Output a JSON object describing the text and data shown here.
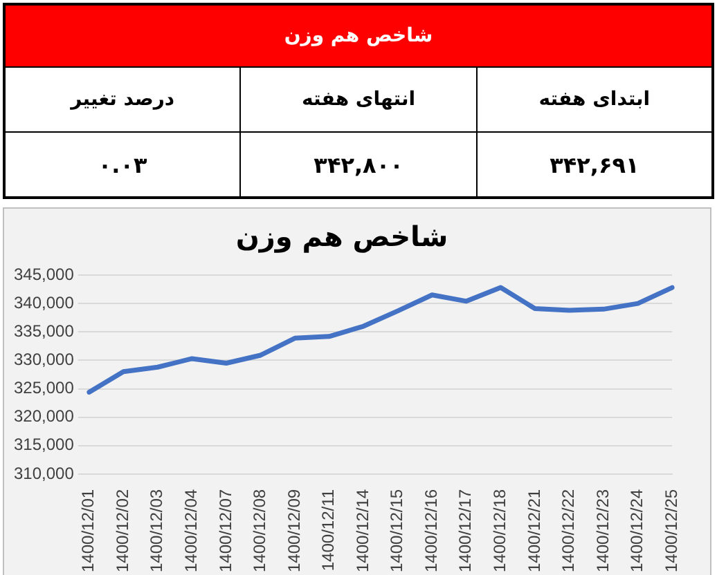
{
  "chart_data": [
    {
      "type": "other",
      "title": "شاخص هم وزن",
      "categories": [
        "ابتدای هفته",
        "انتهای هفته",
        "درصد تغییر"
      ],
      "value_labels": [
        "۳۴۲,۶۹۱",
        "۳۴۲,۸۰۰",
        "۰.۰۳"
      ]
    },
    {
      "type": "line",
      "title": "شاخص هم وزن",
      "categories": [
        "1400/12/01",
        "1400/12/02",
        "1400/12/03",
        "1400/12/04",
        "1400/12/07",
        "1400/12/08",
        "1400/12/09",
        "1400/12/11",
        "1400/12/14",
        "1400/12/15",
        "1400/12/16",
        "1400/12/17",
        "1400/12/18",
        "1400/12/21",
        "1400/12/22",
        "1400/12/23",
        "1400/12/24",
        "1400/12/25"
      ],
      "series": [
        {
          "color": "#4472c4",
          "values": [
            324400,
            328000,
            328800,
            330300,
            329500,
            330900,
            333900,
            334200,
            336000,
            338700,
            341500,
            340400,
            342800,
            339100,
            338800,
            339000,
            340000,
            342800
          ]
        }
      ],
      "ylim": [
        310000,
        345000
      ],
      "yticks": [
        {
          "value": 310000,
          "label": "310,000"
        },
        {
          "value": 315000,
          "label": "315,000"
        },
        {
          "value": 320000,
          "label": "320,000"
        },
        {
          "value": 325000,
          "label": "325,000"
        },
        {
          "value": 330000,
          "label": "330,000"
        },
        {
          "value": 335000,
          "label": "335,000"
        },
        {
          "value": 340000,
          "label": "340,000"
        },
        {
          "value": 345000,
          "label": "345,000"
        }
      ],
      "grid": "y",
      "marker": "none",
      "line_style": "solid"
    }
  ]
}
